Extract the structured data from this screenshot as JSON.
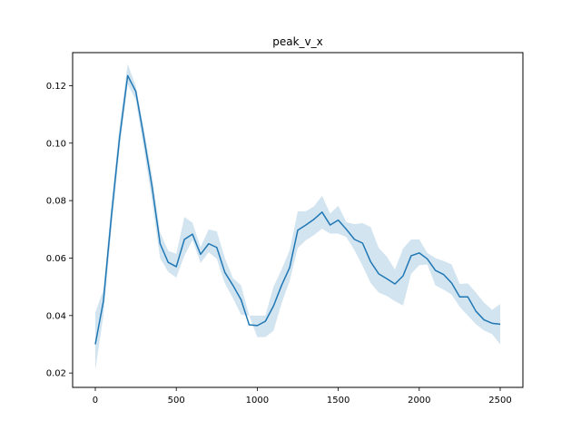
{
  "chart_data": {
    "type": "line",
    "title": "peak_v_x",
    "xlabel": "",
    "ylabel": "",
    "xlim": [
      -140,
      2640
    ],
    "ylim": [
      0.015,
      0.1315
    ],
    "xticks": [
      0,
      500,
      1000,
      1500,
      2000,
      2500
    ],
    "xtick_labels": [
      "0",
      "500",
      "1000",
      "1500",
      "2000",
      "2500"
    ],
    "yticks": [
      0.02,
      0.04,
      0.06,
      0.08,
      0.1,
      0.12
    ],
    "ytick_labels": [
      "0.02",
      "0.04",
      "0.06",
      "0.08",
      "0.10",
      "0.12"
    ],
    "grid": false,
    "series": [
      {
        "color": "#1f77b4",
        "band_color": "#1f77b4",
        "x": [
          0,
          50,
          100,
          150,
          200,
          250,
          300,
          350,
          400,
          450,
          500,
          550,
          600,
          650,
          700,
          750,
          800,
          850,
          900,
          950,
          1000,
          1050,
          1100,
          1150,
          1200,
          1250,
          1300,
          1350,
          1400,
          1450,
          1500,
          1550,
          1600,
          1650,
          1700,
          1750,
          1800,
          1850,
          1900,
          1950,
          2000,
          2050,
          2100,
          2150,
          2200,
          2250,
          2300,
          2350,
          2400,
          2450,
          2500
        ],
        "values": [
          0.03,
          0.045,
          0.075,
          0.102,
          0.1235,
          0.118,
          0.102,
          0.085,
          0.065,
          0.0585,
          0.057,
          0.0665,
          0.0683,
          0.0613,
          0.065,
          0.0637,
          0.055,
          0.0505,
          0.0455,
          0.0368,
          0.0365,
          0.038,
          0.0433,
          0.0505,
          0.0567,
          0.0697,
          0.0715,
          0.0735,
          0.076,
          0.0715,
          0.0732,
          0.07,
          0.0665,
          0.0652,
          0.0587,
          0.0545,
          0.0528,
          0.051,
          0.0538,
          0.0608,
          0.0618,
          0.0597,
          0.0557,
          0.0543,
          0.0513,
          0.0465,
          0.0465,
          0.0415,
          0.0385,
          0.0373,
          0.037
        ],
        "lower": [
          0.021,
          0.04,
          0.07,
          0.098,
          0.1205,
          0.115,
          0.098,
          0.08,
          0.06,
          0.0552,
          0.0532,
          0.0608,
          0.0663,
          0.0583,
          0.062,
          0.0597,
          0.0512,
          0.046,
          0.0403,
          0.04,
          0.0325,
          0.0325,
          0.0347,
          0.0442,
          0.052,
          0.0635,
          0.0662,
          0.068,
          0.0702,
          0.0685,
          0.0685,
          0.0673,
          0.0627,
          0.0573,
          0.0513,
          0.048,
          0.0468,
          0.045,
          0.0435,
          0.0545,
          0.0575,
          0.0578,
          0.0505,
          0.049,
          0.0473,
          0.043,
          0.04,
          0.037,
          0.0348,
          0.0335,
          0.03
        ],
        "upper": [
          0.041,
          0.049,
          0.079,
          0.106,
          0.1275,
          0.12,
          0.105,
          0.089,
          0.069,
          0.0625,
          0.0615,
          0.0743,
          0.0723,
          0.0638,
          0.07,
          0.0693,
          0.06,
          0.053,
          0.0505,
          0.04,
          0.04,
          0.04,
          0.05,
          0.056,
          0.0627,
          0.0763,
          0.0763,
          0.078,
          0.0817,
          0.0755,
          0.0782,
          0.0725,
          0.0718,
          0.0722,
          0.0708,
          0.0635,
          0.0605,
          0.056,
          0.0633,
          0.0665,
          0.0665,
          0.0618,
          0.06,
          0.059,
          0.0578,
          0.051,
          0.0512,
          0.048,
          0.0445,
          0.042,
          0.044
        ]
      }
    ]
  }
}
